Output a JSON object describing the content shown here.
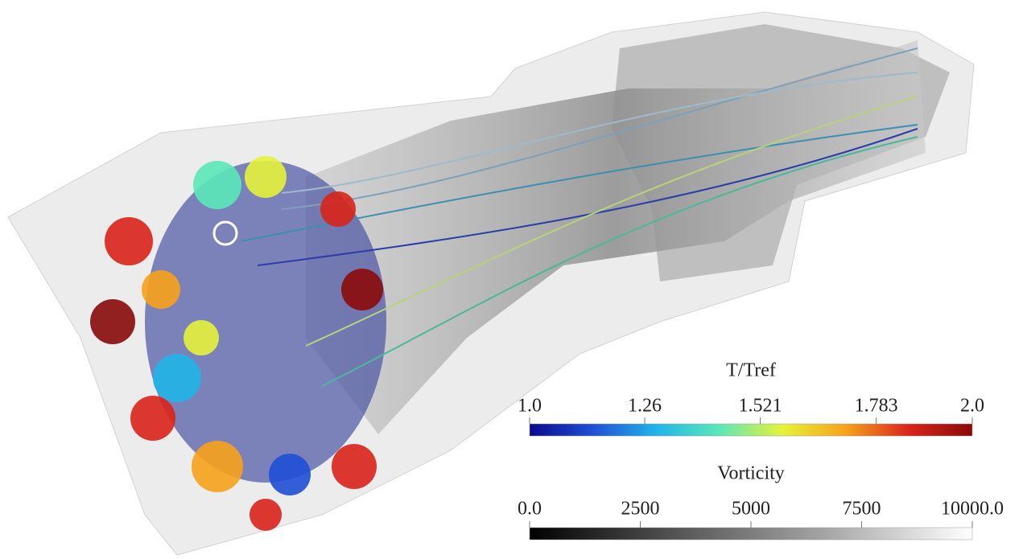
{
  "colorbars": [
    {
      "title": "T/Tref",
      "ticks": [
        {
          "value": 1.0,
          "label": "1.0"
        },
        1.26,
        1.521,
        1.783,
        {
          "value": 2.0,
          "label": "2.0"
        }
      ],
      "colors": [
        "#0a0a8c",
        "#1f4fd6",
        "#21b4e8",
        "#5be8b8",
        "#e6f23a",
        "#f7a21b",
        "#d9241a",
        "#8a0a0a"
      ]
    },
    {
      "title": "Vorticity",
      "ticks": [
        {
          "value": 0.0,
          "label": "0.0"
        },
        2500,
        5000,
        7500,
        {
          "value": 10000.0,
          "label": "10000.0"
        }
      ],
      "colors": [
        "#000000",
        "#555555",
        "#a5a5a5",
        "#ffffff"
      ]
    }
  ]
}
